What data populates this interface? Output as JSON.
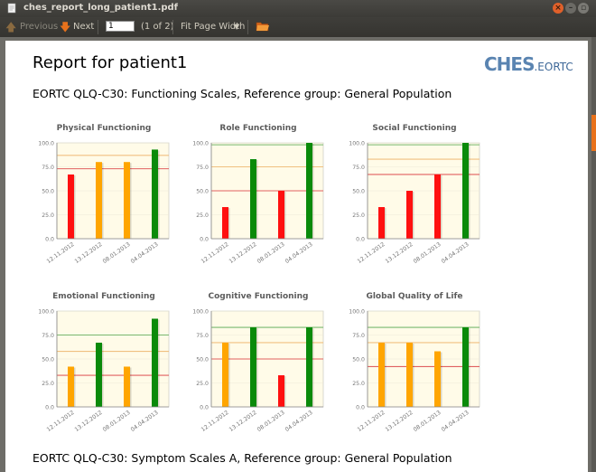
{
  "window": {
    "title": "ches_report_long_patient1.pdf"
  },
  "toolbar": {
    "previous_label": "Previous",
    "next_label": "Next",
    "page_value": "1",
    "page_count": "(1 of 2)",
    "zoom_label": "Fit Page Width"
  },
  "document": {
    "report_title": "Report for patient1",
    "logo_text": "CHES",
    "logo_sub": ".EORTC",
    "section1": "EORTC QLQ-C30: Functioning Scales, Reference group: General Population",
    "section2": "EORTC QLQ-C30: Symptom Scales A, Reference group: General Population"
  },
  "colors": {
    "red": "#ff1010",
    "orange": "#ffa500",
    "green": "#0a8a0a",
    "ref_green": "#78b870",
    "ref_orange": "#f0c080",
    "ref_red": "#e06060"
  },
  "chart_data": [
    {
      "type": "bar",
      "title": "Physical Functioning",
      "categories": [
        "12.11.2012",
        "13.12.2012",
        "08.01.2013",
        "04.04.2013"
      ],
      "values": [
        67,
        80,
        80,
        93
      ],
      "bar_colors": [
        "red",
        "orange",
        "orange",
        "green"
      ],
      "ref_lines": [
        {
          "color": "ref_orange",
          "value": 87
        },
        {
          "color": "ref_red",
          "value": 73
        }
      ],
      "ylim": [
        0,
        100
      ],
      "yticks": [
        "0.0",
        "25.0",
        "50.0",
        "75.0",
        "100.0"
      ]
    },
    {
      "type": "bar",
      "title": "Role Functioning",
      "categories": [
        "12.11.2012",
        "13.12.2012",
        "08.01.2013",
        "04.04.2013"
      ],
      "values": [
        33,
        83,
        50,
        100
      ],
      "bar_colors": [
        "red",
        "green",
        "red",
        "green"
      ],
      "ref_lines": [
        {
          "color": "ref_green",
          "value": 98
        },
        {
          "color": "ref_orange",
          "value": 75
        },
        {
          "color": "ref_red",
          "value": 50
        }
      ],
      "ylim": [
        0,
        100
      ],
      "yticks": [
        "0.0",
        "25.0",
        "50.0",
        "75.0",
        "100.0"
      ]
    },
    {
      "type": "bar",
      "title": "Social Functioning",
      "categories": [
        "12.11.2012",
        "13.12.2012",
        "08.01.2013",
        "04.04.2013"
      ],
      "values": [
        33,
        50,
        67,
        100
      ],
      "bar_colors": [
        "red",
        "red",
        "red",
        "green"
      ],
      "ref_lines": [
        {
          "color": "ref_green",
          "value": 98
        },
        {
          "color": "ref_orange",
          "value": 83
        },
        {
          "color": "ref_red",
          "value": 67
        }
      ],
      "ylim": [
        0,
        100
      ],
      "yticks": [
        "0.0",
        "25.0",
        "50.0",
        "75.0",
        "100.0"
      ]
    },
    {
      "type": "bar",
      "title": "Emotional Functioning",
      "categories": [
        "12.11.2012",
        "13.12.2012",
        "08.01.2013",
        "04.04.2013"
      ],
      "values": [
        42,
        67,
        42,
        92
      ],
      "bar_colors": [
        "orange",
        "green",
        "orange",
        "green"
      ],
      "ref_lines": [
        {
          "color": "ref_green",
          "value": 75
        },
        {
          "color": "ref_orange",
          "value": 58
        },
        {
          "color": "ref_red",
          "value": 33
        }
      ],
      "ylim": [
        0,
        100
      ],
      "yticks": [
        "0.0",
        "25.0",
        "50.0",
        "75.0",
        "100.0"
      ]
    },
    {
      "type": "bar",
      "title": "Cognitive Functioning",
      "categories": [
        "12.11.2012",
        "13.12.2012",
        "08.01.2013",
        "04.04.2013"
      ],
      "values": [
        67,
        83,
        33,
        83
      ],
      "bar_colors": [
        "orange",
        "green",
        "red",
        "green"
      ],
      "ref_lines": [
        {
          "color": "ref_green",
          "value": 83
        },
        {
          "color": "ref_orange",
          "value": 67
        },
        {
          "color": "ref_red",
          "value": 50
        }
      ],
      "ylim": [
        0,
        100
      ],
      "yticks": [
        "0.0",
        "25.0",
        "50.0",
        "75.0",
        "100.0"
      ]
    },
    {
      "type": "bar",
      "title": "Global Quality of Life",
      "categories": [
        "12.11.2012",
        "13.12.2012",
        "08.01.2013",
        "04.04.2013"
      ],
      "values": [
        67,
        67,
        58,
        83
      ],
      "bar_colors": [
        "orange",
        "orange",
        "orange",
        "green"
      ],
      "ref_lines": [
        {
          "color": "ref_green",
          "value": 83
        },
        {
          "color": "ref_orange",
          "value": 67
        },
        {
          "color": "ref_red",
          "value": 42
        }
      ],
      "ylim": [
        0,
        100
      ],
      "yticks": [
        "0.0",
        "25.0",
        "50.0",
        "75.0",
        "100.0"
      ]
    }
  ]
}
